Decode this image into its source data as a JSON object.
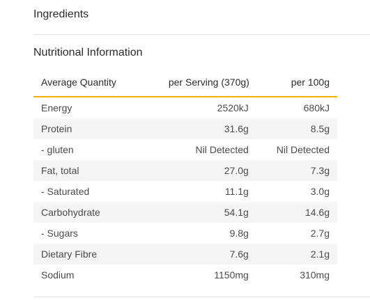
{
  "ingredients": {
    "title": "Ingredients"
  },
  "nutrition": {
    "title": "Nutritional Information",
    "headers": {
      "quantity": "Average Quantity",
      "per_serving": "per Serving (370g)",
      "per_100g": "per 100g"
    },
    "rows": [
      {
        "name": "Energy",
        "per_serving": "2520kJ",
        "per_100g": "680kJ"
      },
      {
        "name": "Protein",
        "per_serving": "31.6g",
        "per_100g": "8.5g"
      },
      {
        "name": "- gluten",
        "per_serving": "Nil Detected",
        "per_100g": "Nil Detected"
      },
      {
        "name": "Fat, total",
        "per_serving": "27.0g",
        "per_100g": "7.3g"
      },
      {
        "name": "- Saturated",
        "per_serving": "11.1g",
        "per_100g": "3.0g"
      },
      {
        "name": "Carbohydrate",
        "per_serving": "54.1g",
        "per_100g": "14.6g"
      },
      {
        "name": "- Sugars",
        "per_serving": "9.8g",
        "per_100g": "2.7g"
      },
      {
        "name": "Dietary Fibre",
        "per_serving": "7.6g",
        "per_100g": "2.1g"
      },
      {
        "name": "Sodium",
        "per_serving": "1150mg",
        "per_100g": "310mg"
      }
    ]
  },
  "colors": {
    "header_underline": "#f0b400",
    "stripe": "#f5f5f5",
    "divider": "#e6e6e6"
  }
}
